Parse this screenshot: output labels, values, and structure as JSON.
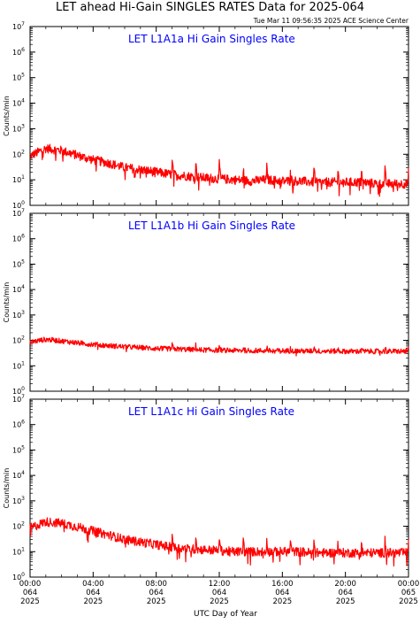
{
  "page_title": "LET ahead Hi-Gain SINGLES RATES Data for 2025-064",
  "timestamp": "Tue Mar 11 09:56:35 2025 ACE Science Center",
  "xlabel": "UTC Day of Year",
  "x_ticks": [
    {
      "time": "00:00",
      "day": "064",
      "year": "2025"
    },
    {
      "time": "04:00",
      "day": "064",
      "year": "2025"
    },
    {
      "time": "08:00",
      "day": "064",
      "year": "2025"
    },
    {
      "time": "12:00",
      "day": "064",
      "year": "2025"
    },
    {
      "time": "16:00",
      "day": "064",
      "year": "2025"
    },
    {
      "time": "20:00",
      "day": "064",
      "year": "2025"
    },
    {
      "time": "00:00",
      "day": "065",
      "year": "2025"
    }
  ],
  "y_ticks": [
    {
      "base": "10",
      "exp": "0"
    },
    {
      "base": "10",
      "exp": "1"
    },
    {
      "base": "10",
      "exp": "2"
    },
    {
      "base": "10",
      "exp": "3"
    },
    {
      "base": "10",
      "exp": "4"
    },
    {
      "base": "10",
      "exp": "5"
    },
    {
      "base": "10",
      "exp": "6"
    },
    {
      "base": "10",
      "exp": "7"
    }
  ],
  "colors": {
    "title": "#0000ff",
    "series": "#ff0000",
    "axes": "#000000"
  },
  "chart_data": [
    {
      "type": "line",
      "title": "LET L1A1a Hi Gain Singles Rate",
      "ylabel": "Counts/min",
      "yscale": "log",
      "ylim": [
        1,
        10000000
      ],
      "xlim_hours": [
        0,
        24
      ],
      "series": [
        {
          "x_hours": [
            0,
            1,
            2,
            3,
            4,
            5,
            6,
            7,
            8,
            9,
            10,
            11,
            12,
            13,
            14,
            15,
            16,
            17,
            18,
            19,
            20,
            21,
            22,
            23,
            24
          ],
          "values": [
            85,
            170,
            140,
            90,
            60,
            45,
            30,
            25,
            20,
            16,
            14,
            12,
            11,
            10,
            9,
            10,
            9,
            9,
            8,
            8,
            8,
            8,
            7,
            7,
            7
          ]
        }
      ]
    },
    {
      "type": "line",
      "title": "LET L1A1b Hi Gain Singles Rate",
      "ylabel": "Counts/min",
      "yscale": "log",
      "ylim": [
        1,
        10000000
      ],
      "xlim_hours": [
        0,
        24
      ],
      "series": [
        {
          "x_hours": [
            0,
            1,
            2,
            3,
            4,
            5,
            6,
            7,
            8,
            9,
            10,
            11,
            12,
            13,
            14,
            15,
            16,
            17,
            18,
            19,
            20,
            21,
            22,
            23,
            24
          ],
          "values": [
            85,
            110,
            95,
            80,
            70,
            62,
            56,
            52,
            48,
            46,
            44,
            42,
            41,
            40,
            40,
            39,
            39,
            38,
            38,
            38,
            37,
            37,
            37,
            37,
            38
          ]
        }
      ]
    },
    {
      "type": "line",
      "title": "LET L1A1c Hi Gain Singles Rate",
      "ylabel": "Counts/min",
      "yscale": "log",
      "ylim": [
        1,
        10000000
      ],
      "xlim_hours": [
        0,
        24
      ],
      "series": [
        {
          "x_hours": [
            0,
            1,
            2,
            3,
            4,
            5,
            6,
            7,
            8,
            9,
            10,
            11,
            12,
            13,
            14,
            15,
            16,
            17,
            18,
            19,
            20,
            21,
            22,
            23,
            24
          ],
          "values": [
            85,
            150,
            130,
            95,
            65,
            45,
            30,
            24,
            19,
            15,
            13,
            12,
            11,
            10,
            10,
            10,
            10,
            10,
            9,
            9,
            9,
            9,
            9,
            9,
            9
          ]
        }
      ]
    }
  ]
}
